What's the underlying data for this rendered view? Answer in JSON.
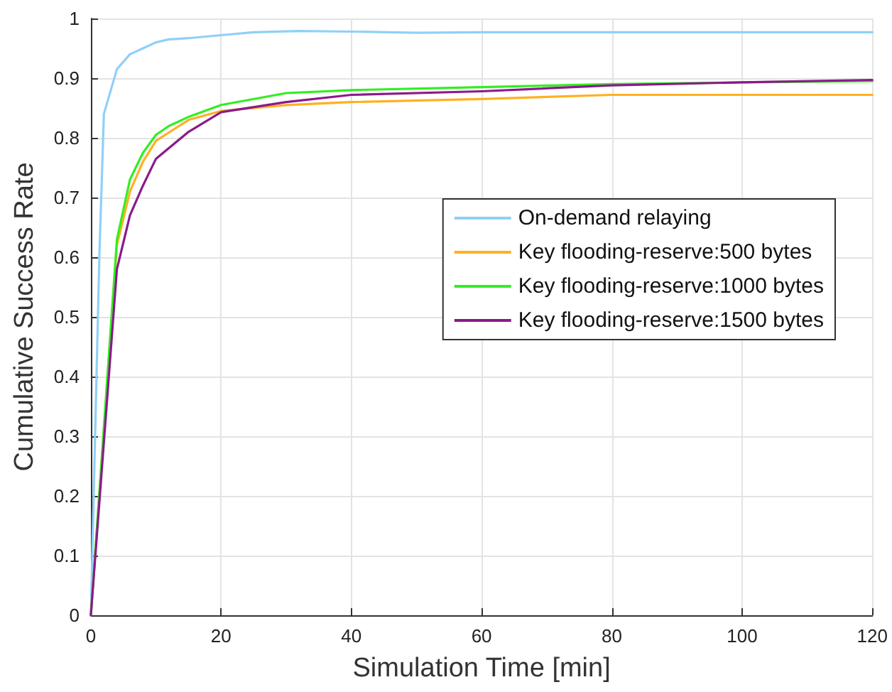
{
  "chart_data": {
    "type": "line",
    "xlabel": "Simulation Time [min]",
    "ylabel": "Cumulative Success Rate",
    "xlim": [
      0,
      120
    ],
    "xticks": [
      0,
      20,
      40,
      60,
      80,
      100,
      120
    ],
    "ylim": [
      0,
      1
    ],
    "yticks": [
      0,
      0.1,
      0.2,
      0.3,
      0.4,
      0.5,
      0.6,
      0.7,
      0.8,
      0.9,
      1
    ],
    "grid": true,
    "legend": "right",
    "marker": "none",
    "line_style": "solid",
    "series": [
      {
        "name": "On-demand relaying",
        "color": "#8fd0f8",
        "x": [
          0,
          1.3,
          2,
          4,
          6,
          8,
          10,
          12,
          15,
          20,
          25,
          32,
          40,
          50,
          60,
          80,
          100,
          120
        ],
        "values": [
          0,
          0.6,
          0.84,
          0.915,
          0.94,
          0.95,
          0.96,
          0.965,
          0.967,
          0.972,
          0.977,
          0.979,
          0.978,
          0.976,
          0.977,
          0.977,
          0.977,
          0.977
        ]
      },
      {
        "name": "Key flooding-reserve:500 bytes",
        "color": "#ffb020",
        "x": [
          0,
          4,
          6,
          8,
          10,
          15,
          20,
          30,
          40,
          60,
          80,
          120
        ],
        "values": [
          0,
          0.62,
          0.71,
          0.76,
          0.795,
          0.83,
          0.845,
          0.855,
          0.86,
          0.865,
          0.872,
          0.872
        ]
      },
      {
        "name": "Key flooding-reserve:1000 bytes",
        "color": "#33ee22",
        "x": [
          0,
          4,
          6,
          8,
          10,
          12,
          15,
          20,
          30,
          40,
          60,
          80,
          100,
          120
        ],
        "values": [
          0,
          0.63,
          0.73,
          0.775,
          0.805,
          0.82,
          0.835,
          0.855,
          0.875,
          0.88,
          0.885,
          0.89,
          0.893,
          0.895
        ]
      },
      {
        "name": "Key flooding-reserve:1500 bytes",
        "color": "#8b1a8b",
        "x": [
          0,
          4,
          6,
          8,
          10,
          15,
          20,
          30,
          40,
          60,
          80,
          100,
          120
        ],
        "values": [
          0,
          0.58,
          0.67,
          0.72,
          0.765,
          0.81,
          0.843,
          0.86,
          0.872,
          0.878,
          0.888,
          0.893,
          0.897
        ]
      }
    ]
  }
}
